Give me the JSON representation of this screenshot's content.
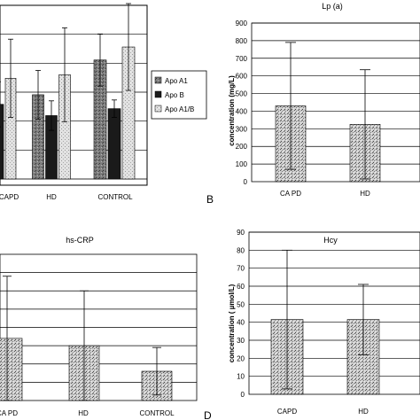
{
  "colors": {
    "apo_a1": "#8a8a8a",
    "apo_b": "#1a1a1a",
    "apo_a1b": "#d6d6d6",
    "stipple": "#999999",
    "grid": "#000000"
  },
  "chart_data": [
    {
      "id": "A",
      "type": "bar",
      "title": "",
      "panel_letter": "",
      "xlabel": "",
      "ylabel": "",
      "categories": [
        "CAPD",
        "HD",
        "CONTROL"
      ],
      "category_labels": [
        "CAPD",
        "HD",
        "CONTROL"
      ],
      "ylim": [
        0,
        2
      ],
      "grid": true,
      "legend_position": "right",
      "series": [
        {
          "name": "Apo A1",
          "values": [
            1.15,
            0.97,
            1.37
          ],
          "err": [
            0.45,
            0.28,
            0.3
          ]
        },
        {
          "name": "Apo B",
          "values": [
            0.86,
            0.73,
            0.81
          ],
          "err": [
            0.26,
            0.17,
            0.1
          ]
        },
        {
          "name": "Apo A1/B",
          "values": [
            1.16,
            1.2,
            1.52
          ],
          "err": [
            0.45,
            0.54,
            0.5
          ]
        }
      ]
    },
    {
      "id": "B",
      "type": "bar",
      "title": "Lp (a)",
      "panel_letter": "B",
      "xlabel": "",
      "ylabel": "concentration (mg/L)",
      "categories": [
        "CAPD",
        "HD"
      ],
      "category_labels": [
        "CA PD",
        "HD"
      ],
      "yticks": [
        "0",
        "100",
        "200",
        "300",
        "400",
        "500",
        "600",
        "700",
        "800",
        "900"
      ],
      "ylim": [
        0,
        900
      ],
      "grid": true,
      "series": [
        {
          "values": [
            430,
            325
          ],
          "err": [
            360,
            310
          ]
        }
      ]
    },
    {
      "id": "C",
      "type": "bar",
      "title": "hs-CRP",
      "panel_letter": "",
      "xlabel": "",
      "ylabel": "",
      "categories": [
        "CAPD",
        "HD",
        "CONTROL"
      ],
      "category_labels": [
        "CA PD",
        "HD",
        "CONTROL"
      ],
      "ylim": [
        0,
        8
      ],
      "grid": true,
      "series": [
        {
          "values": [
            3.4,
            3.0,
            1.6
          ],
          "err": [
            3.4,
            3.0,
            1.3
          ]
        }
      ]
    },
    {
      "id": "D",
      "type": "bar",
      "title": "Hcy",
      "panel_letter": "D",
      "xlabel": "",
      "ylabel": "concentration ( µmol/L)",
      "categories": [
        "CAPD",
        "HD"
      ],
      "category_labels": [
        "CAPD",
        "HD"
      ],
      "yticks": [
        "0",
        "10",
        "20",
        "30",
        "40",
        "50",
        "60",
        "70",
        "80",
        "90"
      ],
      "ylim": [
        0,
        90
      ],
      "grid": true,
      "series": [
        {
          "values": [
            41.5,
            41.5
          ],
          "err": [
            38.5,
            19.5
          ]
        }
      ]
    }
  ]
}
